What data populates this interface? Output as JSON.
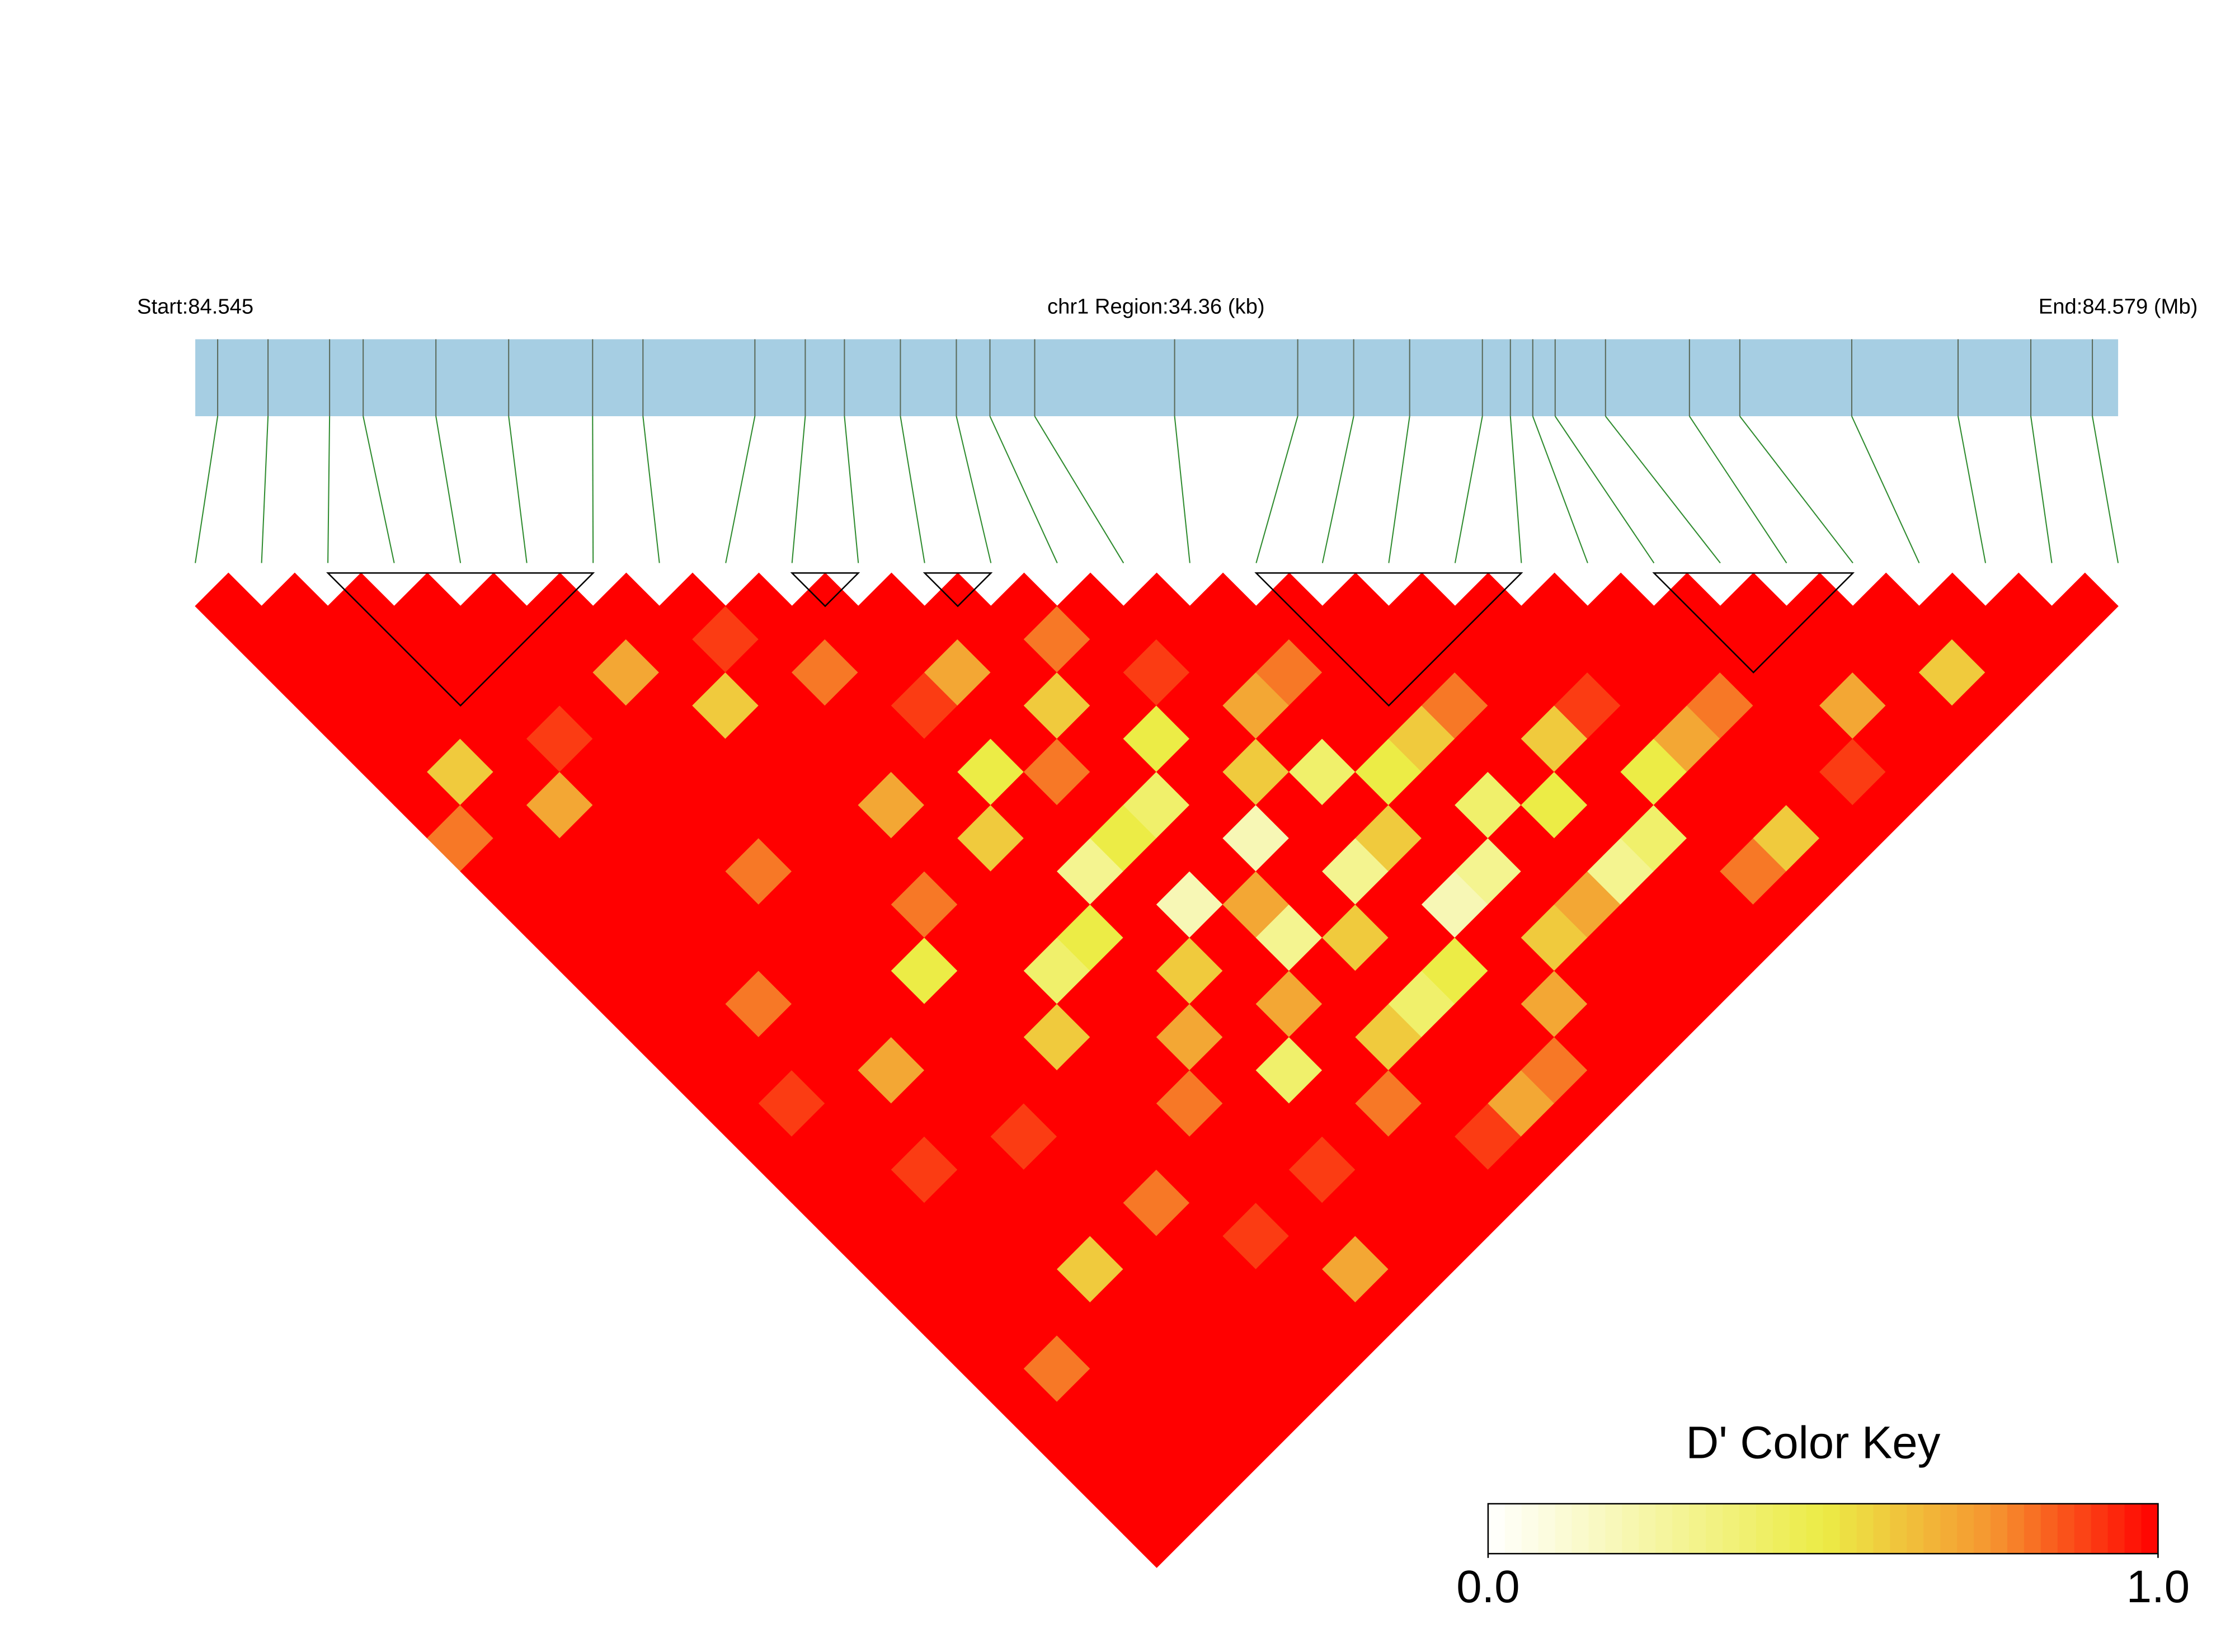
{
  "chart_data": {
    "type": "ld_heatmap",
    "start_label": "Start:84.545",
    "region_label": "chr1 Region:34.36 (kb)",
    "end_label": "End:84.579 (Mb)",
    "key_title": "D' Color Key",
    "key_ticks": [
      {
        "value": 0,
        "label": "0.0"
      },
      {
        "value": 1,
        "label": "1.0"
      }
    ],
    "xlim": [
      0,
      34.36
    ],
    "snp_positions": [
      0.4,
      1.3,
      2.4,
      3.0,
      4.3,
      5.6,
      7.1,
      8.0,
      10.0,
      10.9,
      11.6,
      12.6,
      13.6,
      14.2,
      15.0,
      17.5,
      19.7,
      20.7,
      21.7,
      23.0,
      23.5,
      23.9,
      24.3,
      25.2,
      26.7,
      27.6,
      29.6,
      31.5,
      32.8,
      33.9
    ],
    "bar_color": "#a6cee3",
    "connector_color": "#2e8b2e",
    "blocks": [
      [
        2,
        6
      ],
      [
        9,
        10
      ],
      [
        11,
        12
      ],
      [
        16,
        20
      ],
      [
        22,
        25
      ]
    ],
    "ld_matrix": [
      [
        1,
        1,
        1,
        1,
        1,
        1,
        1,
        0.8,
        1,
        1,
        1,
        1,
        1,
        1,
        1,
        1,
        1,
        1,
        1,
        1,
        1,
        1,
        1,
        1,
        1,
        1,
        1,
        1,
        1
      ],
      [
        1,
        1,
        1,
        1,
        1,
        0.6,
        1,
        1,
        1,
        1,
        1,
        1,
        1,
        1,
        1,
        0.9,
        1,
        1,
        1,
        1,
        1,
        1,
        1,
        0.8,
        1,
        1,
        1,
        1
      ],
      [
        1,
        1,
        1,
        1,
        1,
        1,
        0.7,
        1,
        1,
        1,
        1,
        1,
        0.8,
        1,
        1,
        1,
        1,
        0.9,
        1,
        1,
        1,
        1,
        1,
        1,
        1,
        1,
        1
      ],
      [
        1,
        1,
        1,
        1,
        0.9,
        1,
        1,
        1,
        1,
        1,
        1,
        1,
        1,
        1,
        0.7,
        1,
        1,
        1,
        1,
        1,
        0.6,
        1,
        1,
        1,
        1,
        1
      ],
      [
        1,
        1,
        1,
        1,
        1,
        1,
        1,
        1,
        0.8,
        1,
        1,
        1,
        1,
        1,
        1,
        1,
        0.9,
        1,
        1,
        1,
        1,
        1,
        1,
        1,
        1
      ],
      [
        1,
        1,
        0.7,
        1,
        1,
        1,
        1,
        1,
        1,
        1,
        1,
        0.5,
        1,
        1,
        1,
        1,
        1,
        1,
        0.8,
        1,
        1,
        1,
        1,
        1
      ],
      [
        1,
        1,
        1,
        0.6,
        1,
        1,
        1,
        1,
        1,
        0.8,
        1,
        1,
        1,
        0.6,
        1,
        1,
        1,
        1,
        1,
        0.9,
        1,
        1,
        1
      ],
      [
        1,
        0.9,
        1,
        1,
        1,
        1,
        0.7,
        1,
        1,
        1,
        1,
        0.4,
        1,
        1,
        1,
        0.8,
        1,
        1,
        1,
        1,
        0.7,
        1
      ],
      [
        1,
        1,
        0.8,
        1,
        1,
        1,
        1,
        0.6,
        1,
        1,
        0.5,
        1,
        1,
        0.7,
        1,
        1,
        1,
        0.9,
        1,
        1,
        1
      ],
      [
        1,
        1,
        1,
        0.9,
        1,
        0.5,
        1,
        1,
        0.3,
        1,
        1,
        0.6,
        1,
        1,
        0.4,
        1,
        1,
        1,
        1,
        1
      ],
      [
        1,
        1,
        0.7,
        1,
        1,
        0.8,
        1,
        0.5,
        1,
        0.2,
        1,
        1,
        0.7,
        1,
        1,
        0.8,
        1,
        1,
        1
      ],
      [
        1,
        1,
        1,
        0.6,
        1,
        1,
        0.4,
        1,
        1,
        0.7,
        0.3,
        1,
        1,
        0.6,
        1,
        1,
        0.9,
        1
      ],
      [
        1,
        0.8,
        1,
        1,
        0.5,
        1,
        1,
        0.2,
        1,
        1,
        0.6,
        1,
        0.4,
        1,
        1,
        0.7,
        1
      ],
      [
        1,
        1,
        0.9,
        1,
        1,
        0.6,
        1,
        1,
        0.3,
        1,
        1,
        0.5,
        1,
        1,
        0.8,
        1
      ],
      [
        1,
        1,
        1,
        0.7,
        1,
        0.4,
        1,
        0.6,
        1,
        0.2,
        1,
        1,
        0.7,
        1,
        1
      ],
      [
        1,
        1,
        0.8,
        1,
        1,
        0.5,
        1,
        1,
        0.3,
        1,
        0.6,
        1,
        1,
        1
      ],
      [
        1,
        1,
        1,
        1,
        0.6,
        1,
        0.4,
        1,
        1,
        0.7,
        1,
        1,
        1
      ],
      [
        1,
        1,
        1,
        0.8,
        1,
        1,
        0.5,
        1,
        0.3,
        1,
        1,
        1
      ],
      [
        1,
        1,
        1,
        1,
        0.6,
        1,
        1,
        0.4,
        1,
        1,
        1
      ],
      [
        1,
        1,
        1,
        0.9,
        1,
        0.5,
        1,
        1,
        0.8,
        1
      ],
      [
        1,
        1,
        1,
        1,
        0.7,
        1,
        1,
        0.6,
        1
      ],
      [
        1,
        1,
        1,
        0.8,
        1,
        1,
        1,
        1
      ],
      [
        1,
        1,
        1,
        1,
        1,
        0.9,
        1
      ],
      [
        1,
        1,
        1,
        0.7,
        1,
        1
      ],
      [
        1,
        1,
        1,
        1,
        1
      ],
      [
        1,
        1,
        0.6,
        1
      ],
      [
        1,
        1,
        1
      ],
      [
        1,
        1
      ],
      [
        1
      ]
    ]
  }
}
